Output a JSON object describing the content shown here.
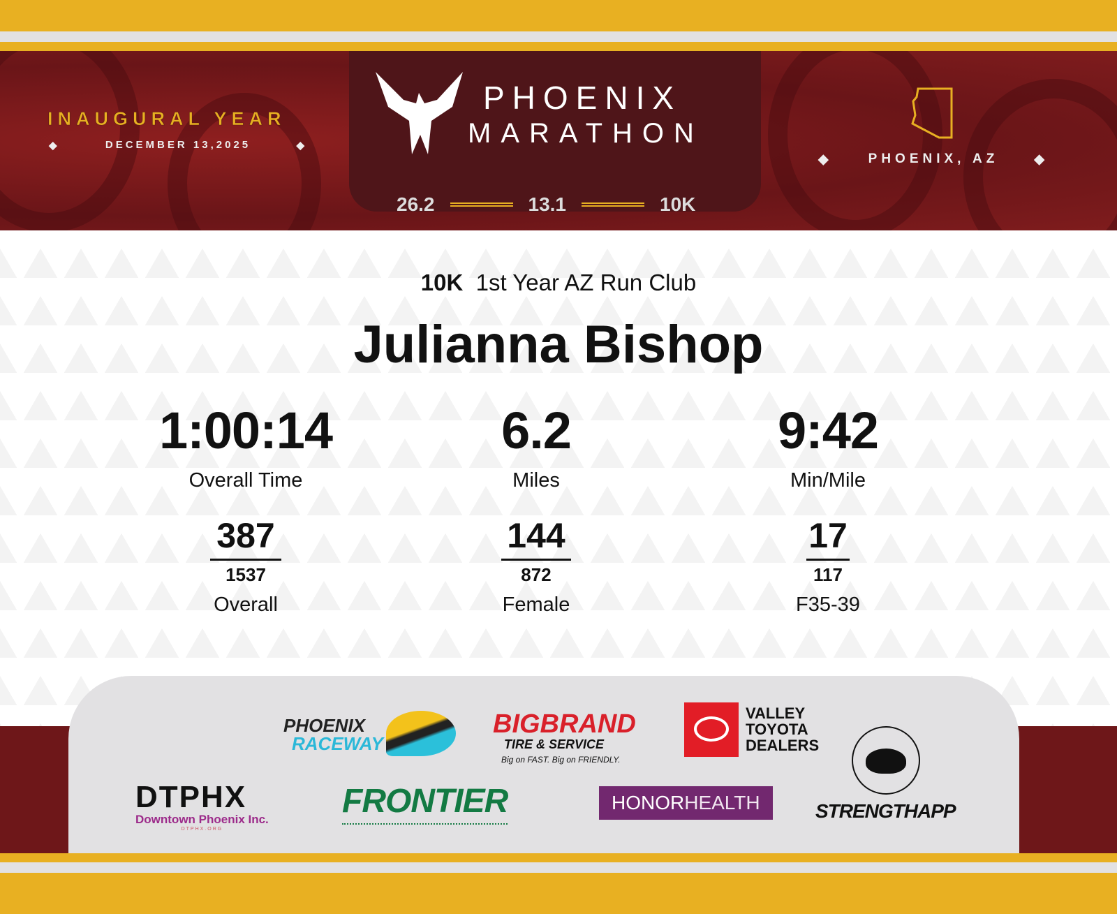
{
  "header": {
    "inaugural": "INAUGURAL YEAR",
    "date": "DECEMBER 13,2025",
    "title_line1": "PHOENIX",
    "title_line2": "MARATHON",
    "location": "PHOENIX, AZ",
    "distances": [
      "26.2",
      "13.1",
      "10K"
    ],
    "colors": {
      "gold": "#e8b022",
      "maroon": "#6a1518",
      "dark": "#4f1519"
    }
  },
  "result": {
    "race": "10K",
    "team": "1st Year AZ Run Club",
    "name": "Julianna Bishop",
    "stats": [
      {
        "value": "1:00:14",
        "label": "Overall Time"
      },
      {
        "value": "6.2",
        "label": "Miles"
      },
      {
        "value": "9:42",
        "label": "Min/Mile"
      }
    ],
    "ranks": [
      {
        "place": "387",
        "total": "1537",
        "label": "Overall"
      },
      {
        "place": "144",
        "total": "872",
        "label": "Female"
      },
      {
        "place": "17",
        "total": "117",
        "label": "F35-39"
      }
    ]
  },
  "sponsors": {
    "raceway_1": "PHOENIX",
    "raceway_2": "RACEWAY",
    "bigbrand": "BIGBRAND",
    "bigbrand_sub": "TIRE & SERVICE",
    "bigbrand_tag": "Big on FAST. Big on FRIENDLY.",
    "toyota": [
      "VALLEY",
      "TOYOTA",
      "DEALERS"
    ],
    "dtphx": "DTPHX",
    "dtphx_sub": "Downtown Phoenix Inc.",
    "dtphx_url": "DTPHX.ORG",
    "frontier": "FRONTIER",
    "honor": "HONOR",
    "health": "HEALTH",
    "strength": "STRENGTHAPP"
  }
}
